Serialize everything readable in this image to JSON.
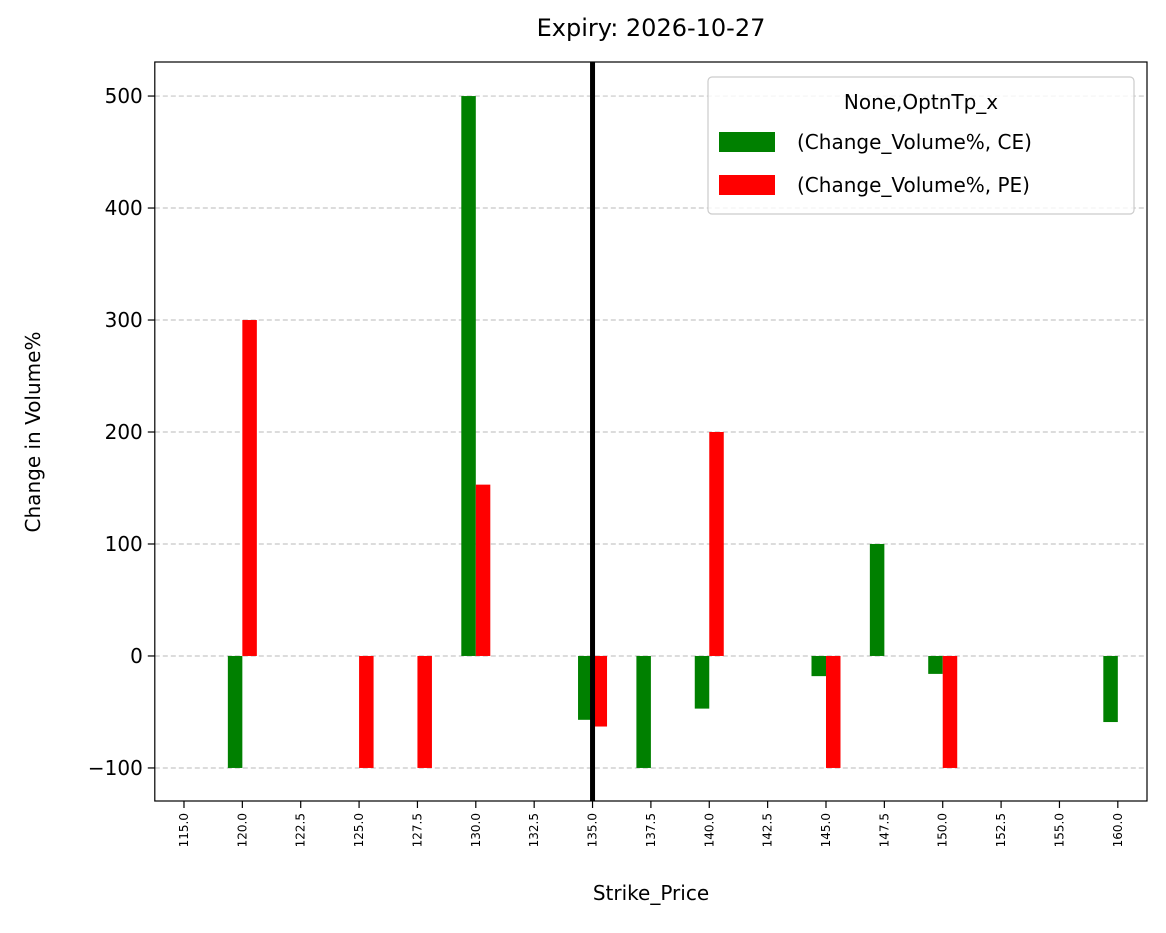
{
  "chart_data": {
    "type": "bar",
    "title": "Expiry: 2026-10-27",
    "x_label": "Strike_Price",
    "y_label": "Change in Volume%",
    "categories": [
      "115.0",
      "120.0",
      "122.5",
      "125.0",
      "127.5",
      "130.0",
      "132.5",
      "135.0",
      "137.5",
      "140.0",
      "142.5",
      "145.0",
      "147.5",
      "150.0",
      "152.5",
      "155.0",
      "160.0"
    ],
    "series": [
      {
        "name": "(Change_Volume%, CE)",
        "color": "#008000",
        "values": [
          null,
          -100,
          null,
          null,
          null,
          500,
          null,
          -57,
          -100,
          -47,
          null,
          -18,
          100,
          -16,
          null,
          null,
          -59
        ]
      },
      {
        "name": "(Change_Volume%, PE)",
        "color": "#ff0000",
        "values": [
          null,
          300,
          null,
          -100,
          -100,
          153,
          null,
          -63,
          null,
          200,
          null,
          -100,
          null,
          -100,
          null,
          null,
          null
        ]
      }
    ],
    "legend_title": "None,OptnTp_x",
    "legend": "upper right",
    "ylim": [
      -129.5,
      530.4
    ],
    "yticks": [
      {
        "value": -100,
        "label": "−100"
      },
      0,
      100,
      200,
      300,
      400,
      500
    ],
    "grid": true,
    "vline": 135,
    "vline_color": "#000000"
  }
}
